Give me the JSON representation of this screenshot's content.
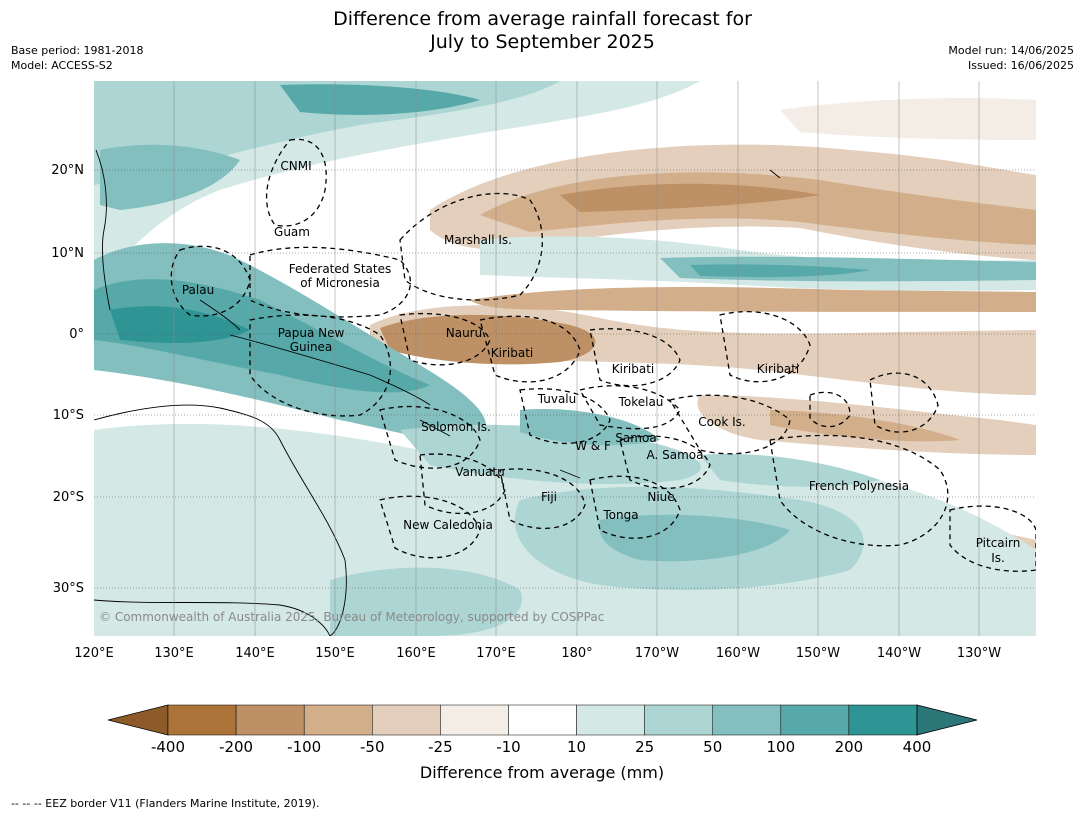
{
  "title_line1": "Difference from average rainfall forecast for",
  "title_line2": "July to September 2025",
  "meta_left": {
    "base_period": "Base period: 1981-2018",
    "model": "Model: ACCESS-S2"
  },
  "meta_right": {
    "model_run": "Model run: 14/06/2025",
    "issued": "Issued: 16/06/2025"
  },
  "lon_ticks": [
    "120°E",
    "130°E",
    "140°E",
    "150°E",
    "160°E",
    "170°E",
    "180°",
    "170°W",
    "160°W",
    "150°W",
    "140°W",
    "130°W"
  ],
  "lat_ticks": [
    "20°N",
    "10°N",
    "0°",
    "10°S",
    "20°S",
    "30°S"
  ],
  "region_labels": {
    "cnmi": "CNMI",
    "guam": "Guam",
    "marshall": "Marshall Is.",
    "fsm1": "Federated States",
    "fsm2": "of Micronesia",
    "palau": "Palau",
    "png1": "Papua New",
    "png2": "Guinea",
    "nauru": "Nauru",
    "kiribati_w": "Kiribati",
    "kiribati_c": "Kiribati",
    "kiribati_e": "Kiribati",
    "tuvalu": "Tuvalu",
    "tokelau": "Tokelau",
    "solomon": "Solomon Is.",
    "wf": "W & F",
    "samoa": "Samoa",
    "asamoa": "A. Samoa",
    "cook": "Cook Is.",
    "vanuatu": "Vanuatu",
    "fiji": "Fiji",
    "niue": "Niue",
    "tonga": "Tonga",
    "frpoly": "French Polynesia",
    "newcal": "New Caledonia",
    "pitcairn1": "Pitcairn",
    "pitcairn2": "Is."
  },
  "copyright": "© Commonwealth of Australia 2025, Bureau of Meteorology, supported by COSPPac",
  "colorbar": {
    "title": "Difference from average (mm)",
    "ticks": [
      "-400",
      "-200",
      "-100",
      "-50",
      "-25",
      "-10",
      "10",
      "25",
      "50",
      "100",
      "200",
      "400"
    ],
    "colors": [
      "#8e5a2a",
      "#ad7439",
      "#be9065",
      "#d3ae8a",
      "#e3cfbb",
      "#f3ede5",
      "#ffffff",
      "#d4e9e6",
      "#acd5d3",
      "#82bfbe",
      "#57a9a9",
      "#2e9594",
      "#2b7676"
    ]
  },
  "footer": "--  --  -- EEZ border V11 (Flanders Marine Institute, 2019)."
}
